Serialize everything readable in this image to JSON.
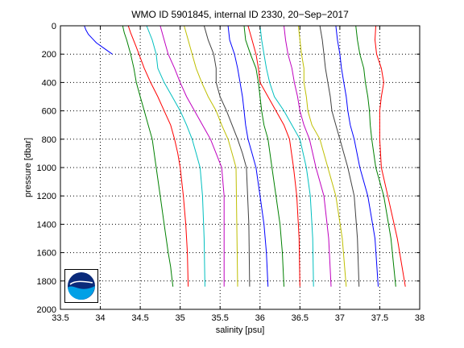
{
  "chart_data": {
    "type": "line",
    "title": "WMO ID 5901845, internal ID 2330, 20−Sep−2017",
    "xlabel": "salinity [psu]",
    "ylabel": "pressure [dbar]",
    "xlim": [
      33.5,
      38
    ],
    "ylim": [
      0,
      2000
    ],
    "y_reversed": true,
    "grid": true,
    "grid_style": "dotted",
    "xticks": [
      33.5,
      34,
      34.5,
      35,
      35.5,
      36,
      36.5,
      37,
      37.5,
      38
    ],
    "xtick_labels": [
      "33.5",
      "34",
      "34.5",
      "35",
      "35.5",
      "36",
      "36.5",
      "37",
      "37.5",
      "38"
    ],
    "yticks": [
      0,
      200,
      400,
      600,
      800,
      1000,
      1200,
      1400,
      1600,
      1800,
      2000
    ],
    "ytick_labels": [
      "0",
      "200",
      "400",
      "600",
      "800",
      "1000",
      "1200",
      "1400",
      "1600",
      "1800",
      "2000"
    ],
    "series": [
      {
        "color": "#0000ff",
        "x": [
          33.8,
          33.82,
          33.85,
          33.9,
          33.95,
          34.05,
          34.15
        ],
        "y": [
          0,
          30,
          60,
          90,
          120,
          160,
          200
        ]
      },
      {
        "color": "#008000",
        "x": [
          34.28,
          34.3,
          34.33,
          34.38,
          34.42,
          34.45,
          34.5,
          34.55,
          34.6,
          34.65,
          34.7,
          34.75,
          34.8,
          34.85,
          34.88,
          34.9,
          34.91
        ],
        "y": [
          0,
          50,
          100,
          200,
          300,
          400,
          500,
          600,
          700,
          800,
          1000,
          1200,
          1400,
          1600,
          1700,
          1800,
          1840
        ]
      },
      {
        "color": "#ff0000",
        "x": [
          34.35,
          34.38,
          34.45,
          34.55,
          34.63,
          34.72,
          34.8,
          34.88,
          34.93,
          34.97,
          35.0,
          35.04,
          35.07,
          35.09,
          35.1
        ],
        "y": [
          0,
          50,
          150,
          300,
          400,
          500,
          600,
          700,
          800,
          900,
          1000,
          1200,
          1400,
          1600,
          1840
        ]
      },
      {
        "color": "#00bfbf",
        "x": [
          34.58,
          34.65,
          34.7,
          34.72,
          34.8,
          34.9,
          35.0,
          35.08,
          35.15,
          35.2,
          35.25,
          35.28,
          35.3,
          35.31
        ],
        "y": [
          0,
          100,
          200,
          300,
          400,
          500,
          600,
          700,
          800,
          900,
          1000,
          1200,
          1500,
          1840
        ]
      },
      {
        "color": "#bf00bf",
        "x": [
          34.75,
          34.8,
          34.85,
          34.93,
          35.0,
          35.08,
          35.18,
          35.28,
          35.38,
          35.45,
          35.52,
          35.55,
          35.55
        ],
        "y": [
          0,
          100,
          200,
          300,
          400,
          500,
          600,
          700,
          800,
          900,
          1000,
          1200,
          1840
        ]
      },
      {
        "color": "#bfbf00",
        "x": [
          35.05,
          35.1,
          35.15,
          35.2,
          35.27,
          35.35,
          35.45,
          35.52,
          35.6,
          35.65,
          35.7,
          35.72
        ],
        "y": [
          0,
          100,
          200,
          300,
          400,
          500,
          600,
          700,
          800,
          900,
          1000,
          1840
        ]
      },
      {
        "color": "#404040",
        "x": [
          35.3,
          35.35,
          35.42,
          35.45,
          35.45,
          35.5,
          35.58,
          35.65,
          35.72,
          35.78,
          35.83,
          35.86,
          35.87
        ],
        "y": [
          0,
          100,
          200,
          300,
          400,
          500,
          600,
          700,
          800,
          900,
          1000,
          1400,
          1840
        ]
      },
      {
        "color": "#0000ff",
        "x": [
          35.6,
          35.62,
          35.68,
          35.72,
          35.75,
          35.78,
          35.8,
          35.82,
          35.85,
          35.9,
          35.95,
          36.0,
          36.05,
          36.08,
          36.1
        ],
        "y": [
          0,
          100,
          200,
          300,
          400,
          500,
          600,
          700,
          800,
          900,
          1000,
          1200,
          1400,
          1600,
          1840
        ]
      },
      {
        "color": "#008000",
        "x": [
          35.8,
          35.82,
          35.88,
          35.95,
          35.98,
          36.0,
          36.02,
          36.05,
          36.1,
          36.15,
          36.2,
          36.25,
          36.28,
          36.3
        ],
        "y": [
          0,
          100,
          200,
          300,
          400,
          500,
          600,
          700,
          800,
          1000,
          1200,
          1400,
          1600,
          1840
        ]
      },
      {
        "color": "#ff0000",
        "x": [
          35.85,
          35.9,
          35.95,
          35.98,
          36.0,
          36.1,
          36.2,
          36.3,
          36.37,
          36.42,
          36.46,
          36.49,
          36.5
        ],
        "y": [
          0,
          100,
          200,
          300,
          400,
          500,
          600,
          700,
          800,
          1000,
          1200,
          1500,
          1840
        ]
      },
      {
        "color": "#00bfbf",
        "x": [
          36.0,
          36.02,
          36.05,
          36.08,
          36.12,
          36.18,
          36.3,
          36.4,
          36.5,
          36.58,
          36.63,
          36.66,
          36.67
        ],
        "y": [
          0,
          100,
          200,
          300,
          400,
          500,
          600,
          700,
          800,
          1000,
          1200,
          1500,
          1840
        ]
      },
      {
        "color": "#bf00bf",
        "x": [
          36.3,
          36.32,
          36.35,
          36.4,
          36.43,
          36.47,
          36.5,
          36.55,
          36.62,
          36.7,
          36.8,
          36.86,
          36.89
        ],
        "y": [
          0,
          100,
          200,
          300,
          400,
          500,
          600,
          700,
          800,
          1000,
          1200,
          1500,
          1840
        ]
      },
      {
        "color": "#bfbf00",
        "x": [
          36.48,
          36.5,
          36.52,
          36.55,
          36.55,
          36.58,
          36.6,
          36.65,
          36.75,
          36.85,
          36.95,
          37.03,
          37.08
        ],
        "y": [
          0,
          100,
          200,
          300,
          400,
          500,
          600,
          700,
          800,
          1000,
          1200,
          1500,
          1840
        ]
      },
      {
        "color": "#404040",
        "x": [
          36.75,
          36.78,
          36.8,
          36.82,
          36.85,
          36.88,
          36.9,
          36.95,
          37.0,
          37.1,
          37.18,
          37.22,
          37.24
        ],
        "y": [
          0,
          100,
          200,
          300,
          400,
          500,
          600,
          700,
          800,
          1000,
          1200,
          1500,
          1840
        ]
      },
      {
        "color": "#0000ff",
        "x": [
          36.95,
          36.97,
          37.0,
          37.02,
          37.05,
          37.08,
          37.1,
          37.13,
          37.18,
          37.25,
          37.35,
          37.44,
          37.48
        ],
        "y": [
          0,
          100,
          200,
          300,
          400,
          500,
          600,
          700,
          800,
          1000,
          1200,
          1500,
          1840
        ]
      },
      {
        "color": "#008000",
        "x": [
          37.2,
          37.22,
          37.25,
          37.3,
          37.32,
          37.35,
          37.37,
          37.38,
          37.4,
          37.45,
          37.55,
          37.64,
          37.7
        ],
        "y": [
          0,
          100,
          200,
          300,
          400,
          500,
          600,
          700,
          800,
          1000,
          1200,
          1500,
          1840
        ]
      },
      {
        "color": "#ff0000",
        "x": [
          37.45,
          37.44,
          37.46,
          37.52,
          37.55,
          37.52,
          37.5,
          37.5,
          37.5,
          37.52,
          37.6,
          37.72,
          37.82
        ],
        "y": [
          0,
          100,
          200,
          300,
          400,
          500,
          600,
          700,
          800,
          1000,
          1200,
          1500,
          1840
        ]
      }
    ]
  },
  "logo": {
    "text": "NOAA"
  }
}
